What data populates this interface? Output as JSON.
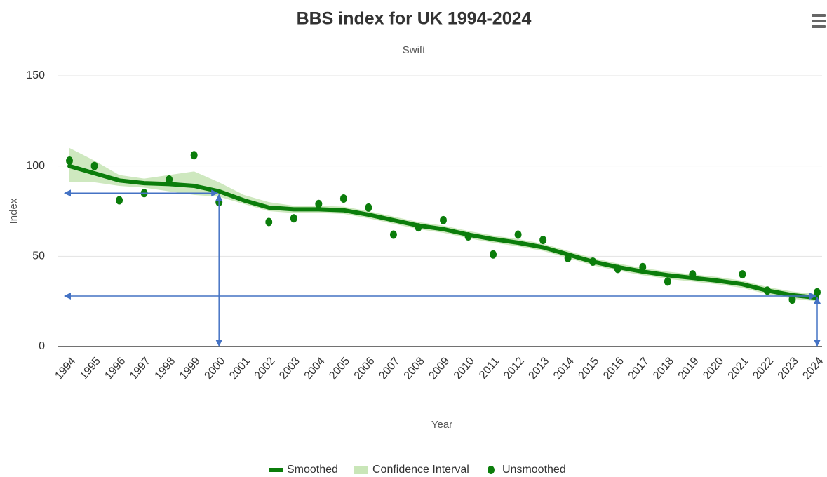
{
  "chart_data": {
    "type": "line",
    "title": "BBS index for UK 1994-2024",
    "subtitle": "Swift",
    "x_label": "Year",
    "y_label": "Index",
    "categories": [
      "1994",
      "1995",
      "1996",
      "1997",
      "1998",
      "1999",
      "2000",
      "2001",
      "2002",
      "2003",
      "2004",
      "2005",
      "2006",
      "2007",
      "2008",
      "2009",
      "2010",
      "2011",
      "2012",
      "2013",
      "2014",
      "2015",
      "2016",
      "2017",
      "2018",
      "2019",
      "2020",
      "2021",
      "2022",
      "2023",
      "2024"
    ],
    "ylim": [
      0,
      150
    ],
    "yticks": [
      0,
      50,
      100,
      150
    ],
    "grid": true,
    "legend": "bottom",
    "series": [
      {
        "name": "Smoothed",
        "color": "#0b7d0b",
        "values": [
          100,
          96,
          92,
          90.5,
          90,
          89,
          86,
          81,
          77,
          76,
          76,
          75.5,
          73,
          70,
          67,
          65,
          62,
          59.5,
          57.5,
          55,
          51,
          47,
          44,
          41.5,
          39.5,
          38,
          36.5,
          34.5,
          31,
          28.5,
          27
        ]
      },
      {
        "name": "Confidence Interval",
        "color": "#c9e6b8",
        "lower": [
          91,
          91,
          89,
          88,
          86,
          84,
          83,
          79,
          75,
          74,
          74,
          73.5,
          71,
          68,
          65,
          63,
          60,
          57.5,
          55.5,
          53,
          49,
          45,
          42,
          39.5,
          37.5,
          36,
          34.5,
          32.5,
          29,
          26.5,
          25
        ],
        "upper": [
          110,
          103,
          95,
          93,
          95,
          97,
          91,
          84,
          80,
          78,
          78,
          77.5,
          75,
          72,
          69,
          67,
          64,
          61.5,
          59.5,
          57,
          53,
          49,
          46,
          43.5,
          41.5,
          40,
          38.5,
          36.5,
          33,
          30.5,
          29
        ]
      },
      {
        "name": "Unsmoothed",
        "color": "#0b7d0b",
        "values": [
          103,
          100,
          81,
          85,
          92.5,
          106,
          80,
          null,
          69,
          71,
          79,
          82,
          77,
          62,
          66,
          70,
          61,
          51,
          62,
          59,
          49,
          47,
          43,
          44,
          36,
          40,
          null,
          40,
          31,
          26,
          30
        ]
      }
    ]
  }
}
